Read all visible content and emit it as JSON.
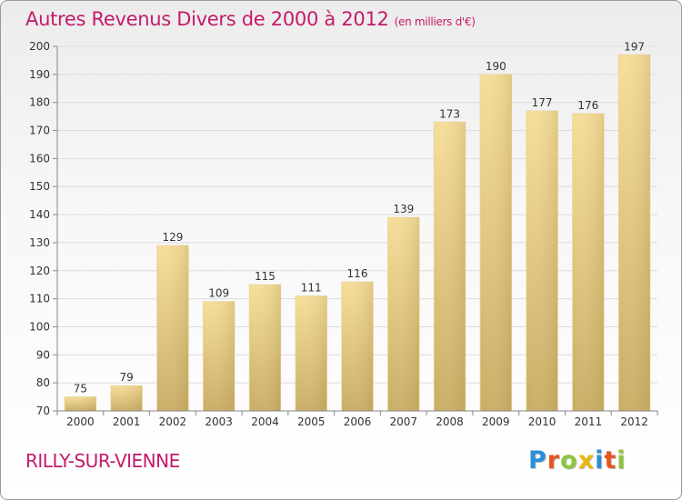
{
  "title": "Autres Revenus Divers de 2000 à 2012",
  "unit": "(en milliers d'€)",
  "town": "RILLY-SUR-VIENNE",
  "logo": {
    "text": "Proxiti",
    "colors": [
      "#2a8fd8",
      "#e8541d",
      "#8cc63f",
      "#e8b80f",
      "#2a8fd8",
      "#e8541d",
      "#8cc63f"
    ]
  },
  "colors": {
    "title": "#c41b6b",
    "bar_light": "#f6de98",
    "bar_dark": "#c9ac63"
  },
  "chart_data": {
    "type": "bar",
    "categories": [
      "2000",
      "2001",
      "2002",
      "2003",
      "2004",
      "2005",
      "2006",
      "2007",
      "2008",
      "2009",
      "2010",
      "2011",
      "2012"
    ],
    "values": [
      75,
      79,
      129,
      109,
      115,
      111,
      116,
      139,
      173,
      190,
      177,
      176,
      197
    ],
    "ylim": [
      70,
      200
    ],
    "yticks": [
      70,
      80,
      90,
      100,
      110,
      120,
      130,
      140,
      150,
      160,
      170,
      180,
      190,
      200
    ],
    "grid": true
  }
}
